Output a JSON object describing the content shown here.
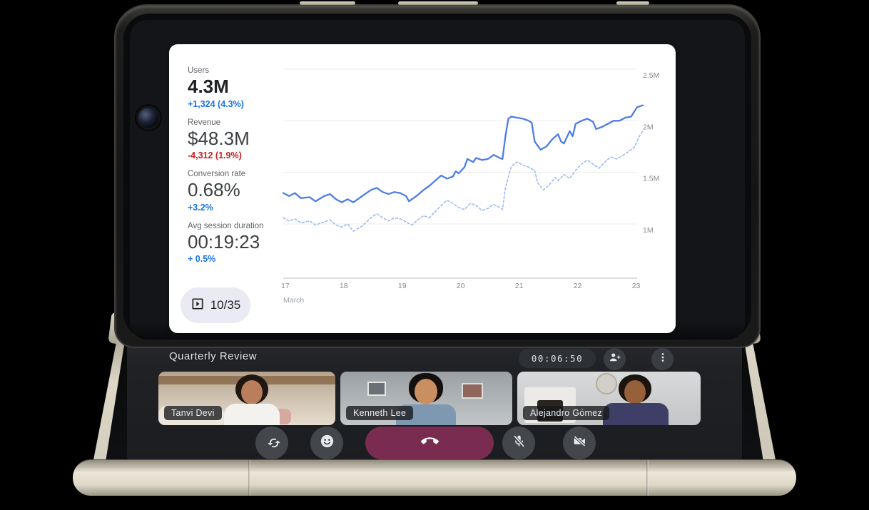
{
  "colors": {
    "accent_blue": "#1a73e8",
    "negative_red": "#c5221f",
    "line_solid": "#4e7de9",
    "line_dashed": "#9db9f5",
    "end_call_bg": "#7a2c50",
    "control_button_bg": "#43464b",
    "card_bg": "#ffffff",
    "screen_bg": "#1f2125",
    "spine_beige": "#d8d2c2"
  },
  "presentation": {
    "stats": [
      {
        "label": "Users",
        "value": "4.3M",
        "delta": "+1,324 (4.3%)",
        "delta_color": "#1a73e8"
      },
      {
        "label": "Revenue",
        "value": "$48.3M",
        "delta": "-4,312 (1.9%)",
        "delta_color": "#c5221f"
      },
      {
        "label": "Conversion rate",
        "value": "0.68%",
        "delta": "+3.2%",
        "delta_color": "#1a73e8"
      },
      {
        "label": "Avg session duration",
        "value": "00:19:23",
        "delta": "+ 0.5%",
        "delta_color": "#1a73e8"
      }
    ],
    "slide_counter": "10/35",
    "slide_counter_icon": "slideshow-icon"
  },
  "chart_data": {
    "type": "line",
    "title": "",
    "x_axis_label": "March",
    "x_ticks": [
      17,
      18,
      19,
      20,
      21,
      22,
      23
    ],
    "x_range": [
      17,
      23.15
    ],
    "y_ticks": [
      {
        "label": "2.5M",
        "value": 2.5
      },
      {
        "label": "2M",
        "value": 2.0
      },
      {
        "label": "1.5M",
        "value": 1.5
      },
      {
        "label": "1M",
        "value": 1.0
      }
    ],
    "y_top_value": 2.5,
    "grid": true,
    "legend": "none",
    "series": [
      {
        "name": "users-current",
        "style": "solid",
        "color": "#4e7de9",
        "points": [
          [
            17.0,
            1.3
          ],
          [
            17.1,
            1.27
          ],
          [
            17.2,
            1.3
          ],
          [
            17.3,
            1.25
          ],
          [
            17.45,
            1.26
          ],
          [
            17.55,
            1.22
          ],
          [
            17.7,
            1.27
          ],
          [
            17.8,
            1.29
          ],
          [
            17.9,
            1.24
          ],
          [
            18.0,
            1.21
          ],
          [
            18.1,
            1.24
          ],
          [
            18.2,
            1.21
          ],
          [
            18.35,
            1.27
          ],
          [
            18.5,
            1.33
          ],
          [
            18.6,
            1.35
          ],
          [
            18.7,
            1.31
          ],
          [
            18.8,
            1.29
          ],
          [
            18.9,
            1.31
          ],
          [
            19.0,
            1.3
          ],
          [
            19.1,
            1.27
          ],
          [
            19.15,
            1.22
          ],
          [
            19.3,
            1.28
          ],
          [
            19.4,
            1.33
          ],
          [
            19.5,
            1.37
          ],
          [
            19.6,
            1.42
          ],
          [
            19.7,
            1.47
          ],
          [
            19.8,
            1.44
          ],
          [
            19.9,
            1.46
          ],
          [
            19.95,
            1.51
          ],
          [
            20.0,
            1.49
          ],
          [
            20.1,
            1.55
          ],
          [
            20.15,
            1.63
          ],
          [
            20.25,
            1.6
          ],
          [
            20.3,
            1.64
          ],
          [
            20.4,
            1.62
          ],
          [
            20.5,
            1.63
          ],
          [
            20.6,
            1.67
          ],
          [
            20.7,
            1.64
          ],
          [
            20.75,
            1.63
          ],
          [
            20.8,
            1.85
          ],
          [
            20.85,
            2.02
          ],
          [
            20.9,
            2.04
          ],
          [
            21.0,
            2.03
          ],
          [
            21.1,
            2.02
          ],
          [
            21.2,
            2.0
          ],
          [
            21.25,
            1.98
          ],
          [
            21.3,
            1.8
          ],
          [
            21.4,
            1.72
          ],
          [
            21.5,
            1.75
          ],
          [
            21.6,
            1.82
          ],
          [
            21.7,
            1.87
          ],
          [
            21.75,
            1.8
          ],
          [
            21.8,
            1.78
          ],
          [
            21.9,
            1.9
          ],
          [
            21.95,
            1.85
          ],
          [
            22.0,
            1.97
          ],
          [
            22.1,
            2.0
          ],
          [
            22.2,
            2.02
          ],
          [
            22.3,
            1.99
          ],
          [
            22.35,
            1.92
          ],
          [
            22.45,
            1.94
          ],
          [
            22.55,
            1.97
          ],
          [
            22.65,
            2.0
          ],
          [
            22.75,
            2.0
          ],
          [
            22.85,
            2.03
          ],
          [
            22.95,
            2.04
          ],
          [
            23.05,
            2.13
          ],
          [
            23.15,
            2.15
          ]
        ]
      },
      {
        "name": "users-previous",
        "style": "dashed",
        "color": "#9db9f5",
        "points": [
          [
            17.0,
            1.06
          ],
          [
            17.1,
            1.03
          ],
          [
            17.2,
            1.05
          ],
          [
            17.3,
            1.01
          ],
          [
            17.45,
            1.03
          ],
          [
            17.55,
            0.99
          ],
          [
            17.7,
            1.02
          ],
          [
            17.8,
            1.04
          ],
          [
            17.9,
            0.99
          ],
          [
            18.0,
            0.97
          ],
          [
            18.1,
            1.0
          ],
          [
            18.2,
            0.93
          ],
          [
            18.35,
            0.98
          ],
          [
            18.5,
            1.06
          ],
          [
            18.6,
            1.1
          ],
          [
            18.7,
            1.06
          ],
          [
            18.8,
            1.03
          ],
          [
            18.9,
            1.06
          ],
          [
            19.0,
            1.05
          ],
          [
            19.1,
            1.02
          ],
          [
            19.2,
            0.99
          ],
          [
            19.3,
            1.04
          ],
          [
            19.4,
            1.08
          ],
          [
            19.5,
            1.06
          ],
          [
            19.6,
            1.12
          ],
          [
            19.7,
            1.18
          ],
          [
            19.8,
            1.23
          ],
          [
            19.9,
            1.2
          ],
          [
            20.0,
            1.16
          ],
          [
            20.1,
            1.14
          ],
          [
            20.2,
            1.2
          ],
          [
            20.3,
            1.18
          ],
          [
            20.4,
            1.13
          ],
          [
            20.5,
            1.15
          ],
          [
            20.6,
            1.19
          ],
          [
            20.7,
            1.16
          ],
          [
            20.75,
            1.14
          ],
          [
            20.8,
            1.35
          ],
          [
            20.9,
            1.56
          ],
          [
            21.0,
            1.6
          ],
          [
            21.1,
            1.57
          ],
          [
            21.2,
            1.55
          ],
          [
            21.3,
            1.52
          ],
          [
            21.35,
            1.4
          ],
          [
            21.45,
            1.33
          ],
          [
            21.55,
            1.38
          ],
          [
            21.65,
            1.45
          ],
          [
            21.7,
            1.42
          ],
          [
            21.8,
            1.48
          ],
          [
            21.9,
            1.44
          ],
          [
            22.0,
            1.52
          ],
          [
            22.1,
            1.58
          ],
          [
            22.2,
            1.62
          ],
          [
            22.3,
            1.58
          ],
          [
            22.4,
            1.54
          ],
          [
            22.5,
            1.6
          ],
          [
            22.6,
            1.65
          ],
          [
            22.7,
            1.63
          ],
          [
            22.8,
            1.66
          ],
          [
            22.9,
            1.7
          ],
          [
            23.0,
            1.74
          ],
          [
            23.1,
            1.86
          ],
          [
            23.15,
            1.9
          ]
        ]
      }
    ]
  },
  "call": {
    "title": "Quarterly Review",
    "timer": "00:06:50",
    "participants": [
      {
        "name": "Tanvi Devi"
      },
      {
        "name": "Kenneth Lee"
      },
      {
        "name": "Alejandro Gómez"
      }
    ],
    "buttons": {
      "add_person_icon": "person-add-icon",
      "more_options_icon": "more-vert-icon",
      "flip_camera_icon": "flip-camera-icon",
      "reactions_icon": "emoji-icon",
      "end_call_icon": "end-call-icon",
      "mic_muted_icon": "mic-off-icon",
      "camera_muted_icon": "camera-off-icon"
    }
  }
}
